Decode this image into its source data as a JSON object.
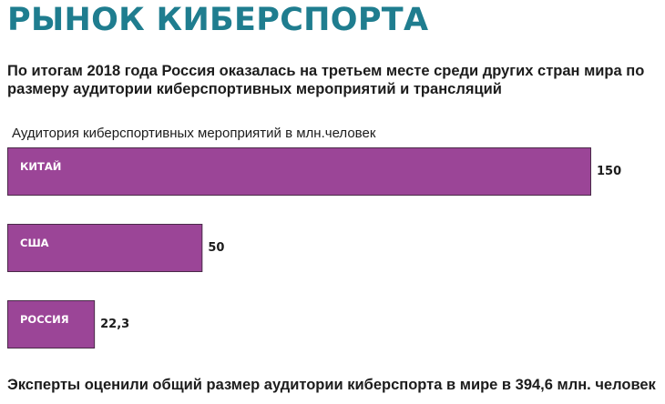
{
  "header": {
    "title": "РЫНОК КИБЕРСПОРТА",
    "subtitle": "По итогам 2018 года Россия оказалась на третьем месте среди других стран мира по размеру аудитории киберспортивных мероприятий и трансляций"
  },
  "footer": {
    "text": "Эксперты оценили общий размер аудитории киберспорта в мире в 394,6 млн. человек"
  },
  "colors": {
    "title": "#1f7d8f",
    "bar": "#9b4597"
  },
  "chart_data": {
    "type": "bar",
    "orientation": "horizontal",
    "title": "",
    "xlabel": "Аудитория киберспортивных мероприятий в млн.человек",
    "ylabel": "",
    "categories": [
      "КИТАЙ",
      "США",
      "РОССИЯ"
    ],
    "values": [
      150,
      50,
      22.3
    ],
    "value_labels": [
      "150",
      "50",
      "22,3"
    ],
    "xlim": [
      0,
      150
    ],
    "grid": false,
    "legend": "none"
  }
}
